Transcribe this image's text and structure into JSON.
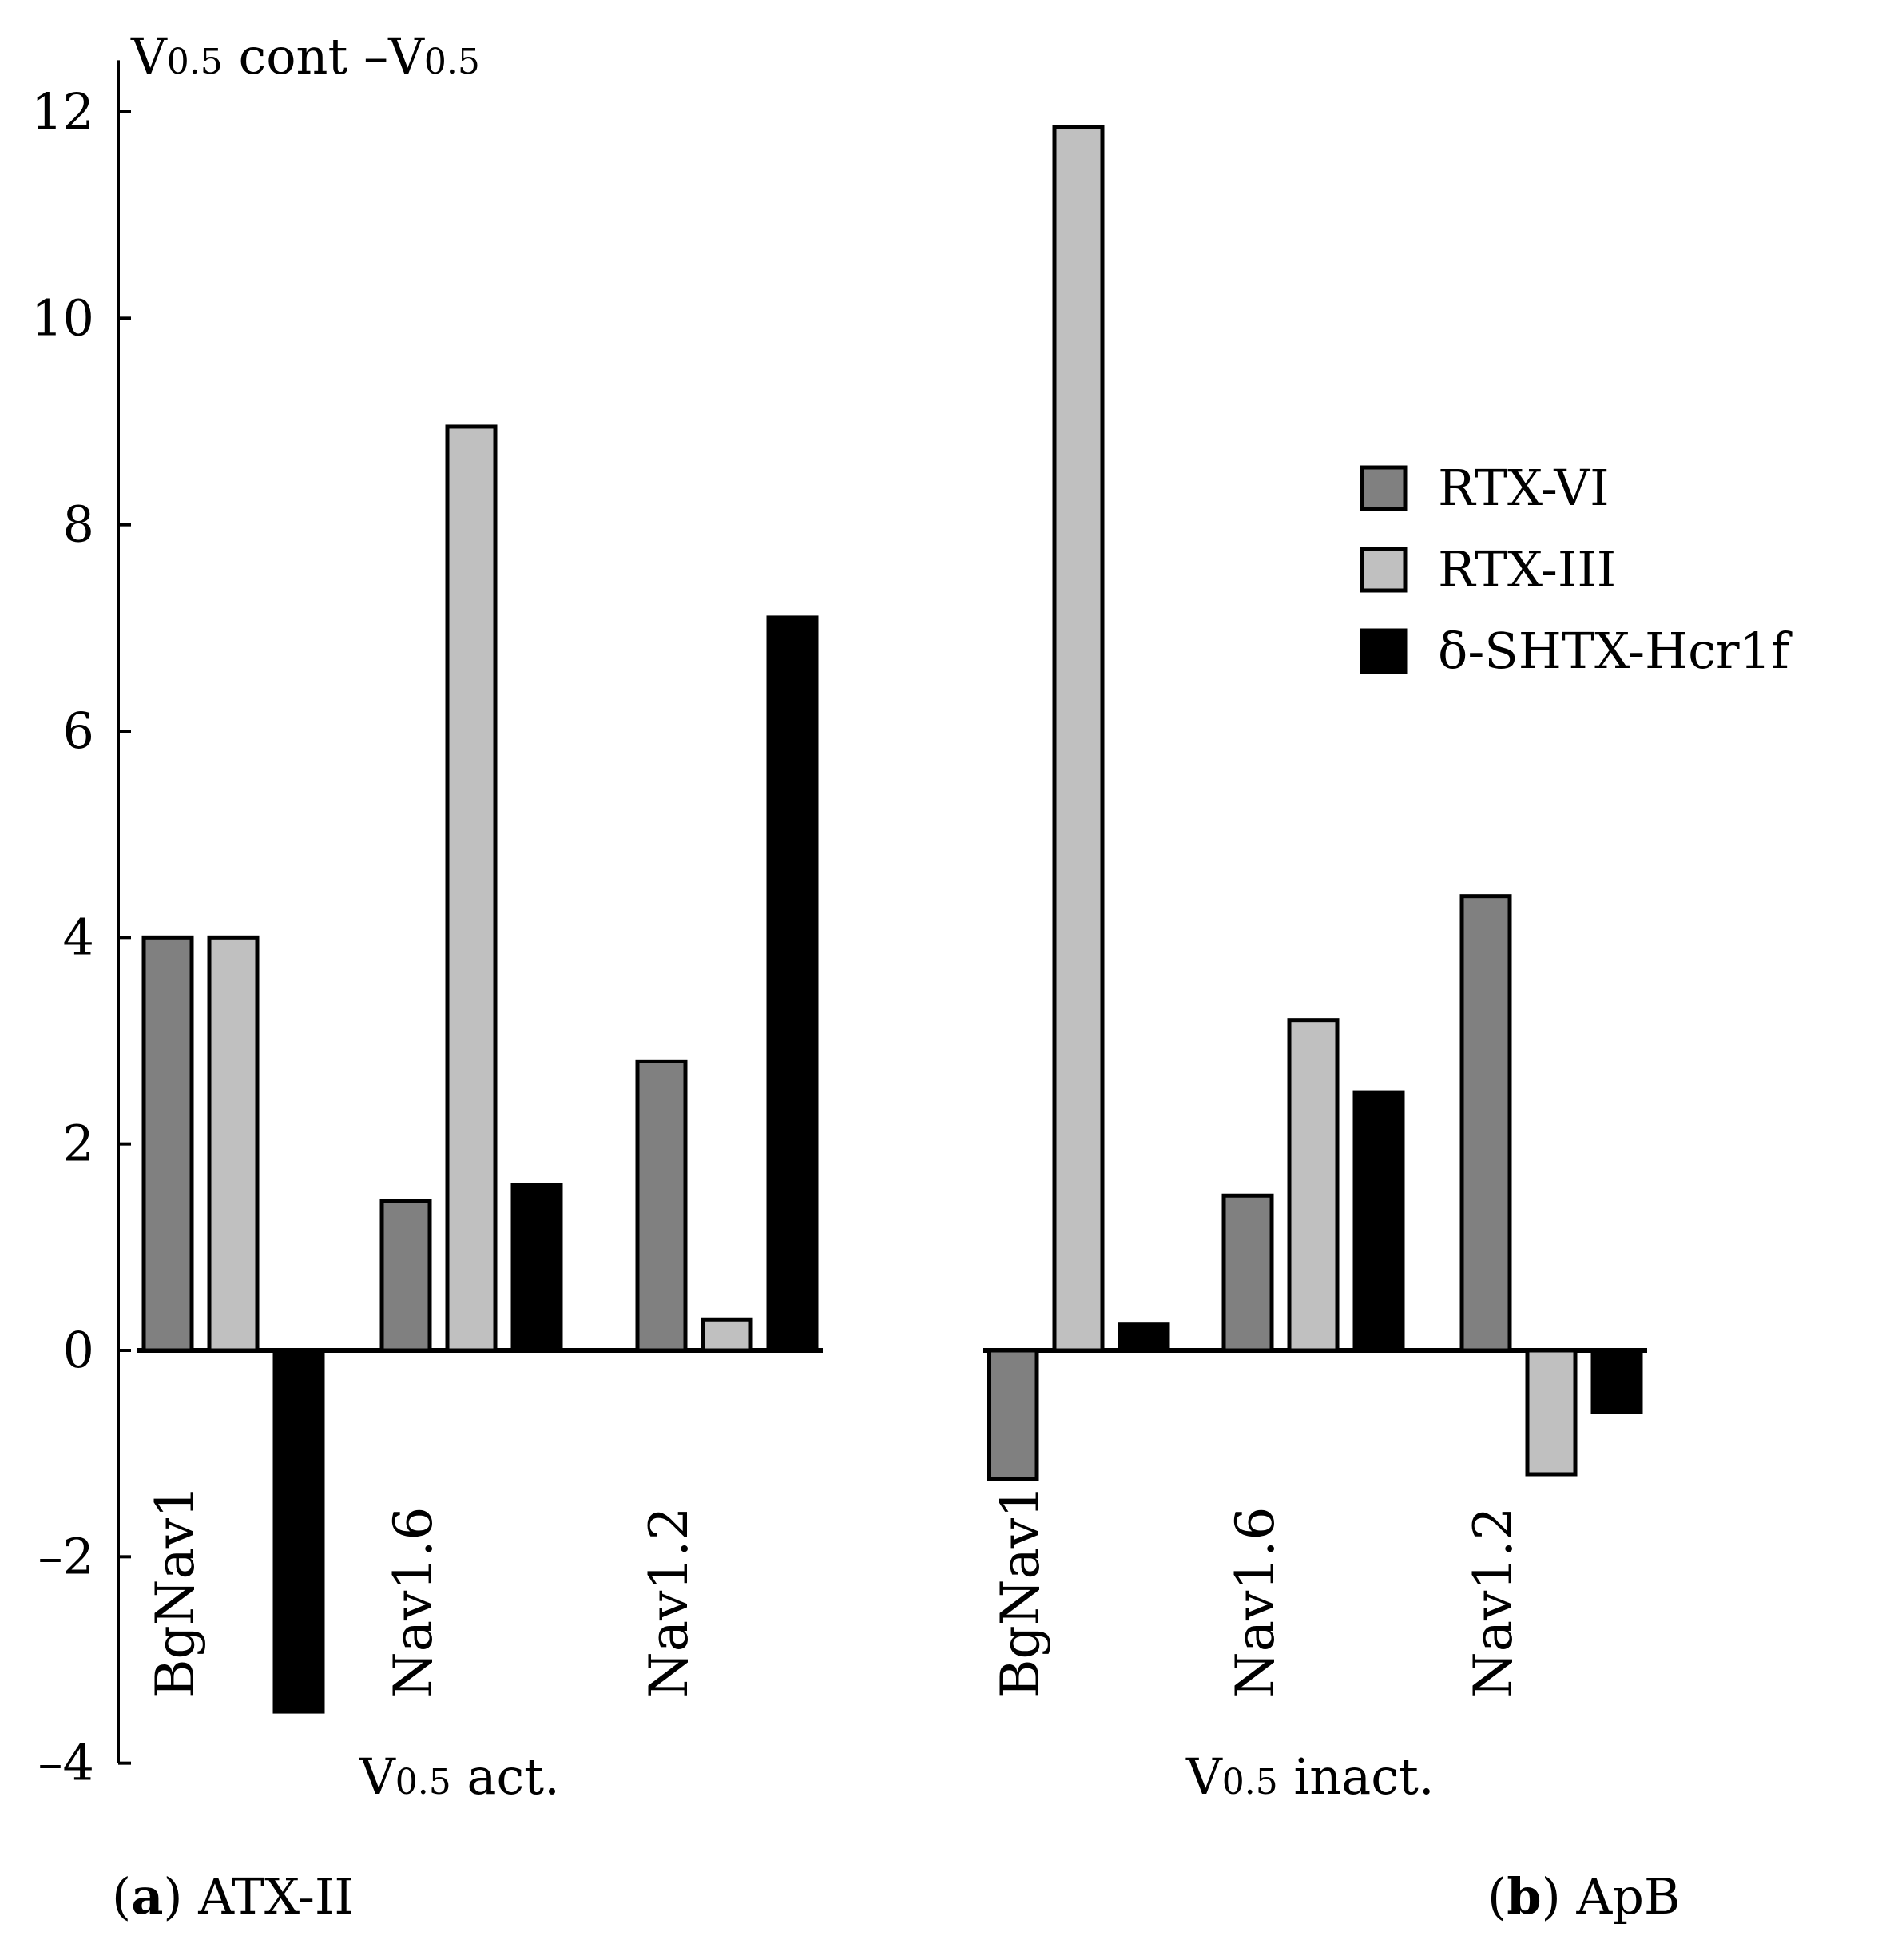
{
  "chart_data": {
    "type": "bar",
    "ylabel": {
      "main": "V",
      "sub1": "0.5",
      "mid": " cont –V",
      "sub2": "0.5"
    },
    "ylim": [
      -4,
      12.5
    ],
    "yticks": [
      -4,
      -2,
      0,
      2,
      4,
      6,
      8,
      10,
      12
    ],
    "ytick_labels": [
      "–4",
      "–2",
      "0",
      "2",
      "4",
      "6",
      "8",
      "10",
      "12"
    ],
    "series": [
      {
        "name": "RTX-VI",
        "color": "#808080"
      },
      {
        "name": "RTX-III",
        "color": "#c0c0c0"
      },
      {
        "name": "δ-SHTX-Hcr1f",
        "color": "#000000"
      }
    ],
    "groups": [
      {
        "label_main": "V",
        "label_sub": "0.5",
        "label_rest": " act.",
        "panel_bold": "a",
        "panel_text": "ATX-II",
        "categories": [
          "BgNav1",
          "Nav1.6",
          "Nav1.2"
        ],
        "values": [
          [
            4.0,
            4.0,
            -3.5
          ],
          [
            1.45,
            8.95,
            1.6
          ],
          [
            2.8,
            0.3,
            7.1
          ]
        ]
      },
      {
        "label_main": "V",
        "label_sub": "0.5",
        "label_rest": " inact.",
        "panel_bold": "b",
        "panel_text": "ApB",
        "categories": [
          "BgNav1",
          "Nav1.6",
          "Nav1.2"
        ],
        "values": [
          [
            -1.25,
            11.85,
            0.25
          ],
          [
            1.5,
            3.2,
            2.5
          ],
          [
            4.4,
            -1.2,
            -0.6
          ]
        ]
      }
    ],
    "legend_position": "right"
  }
}
